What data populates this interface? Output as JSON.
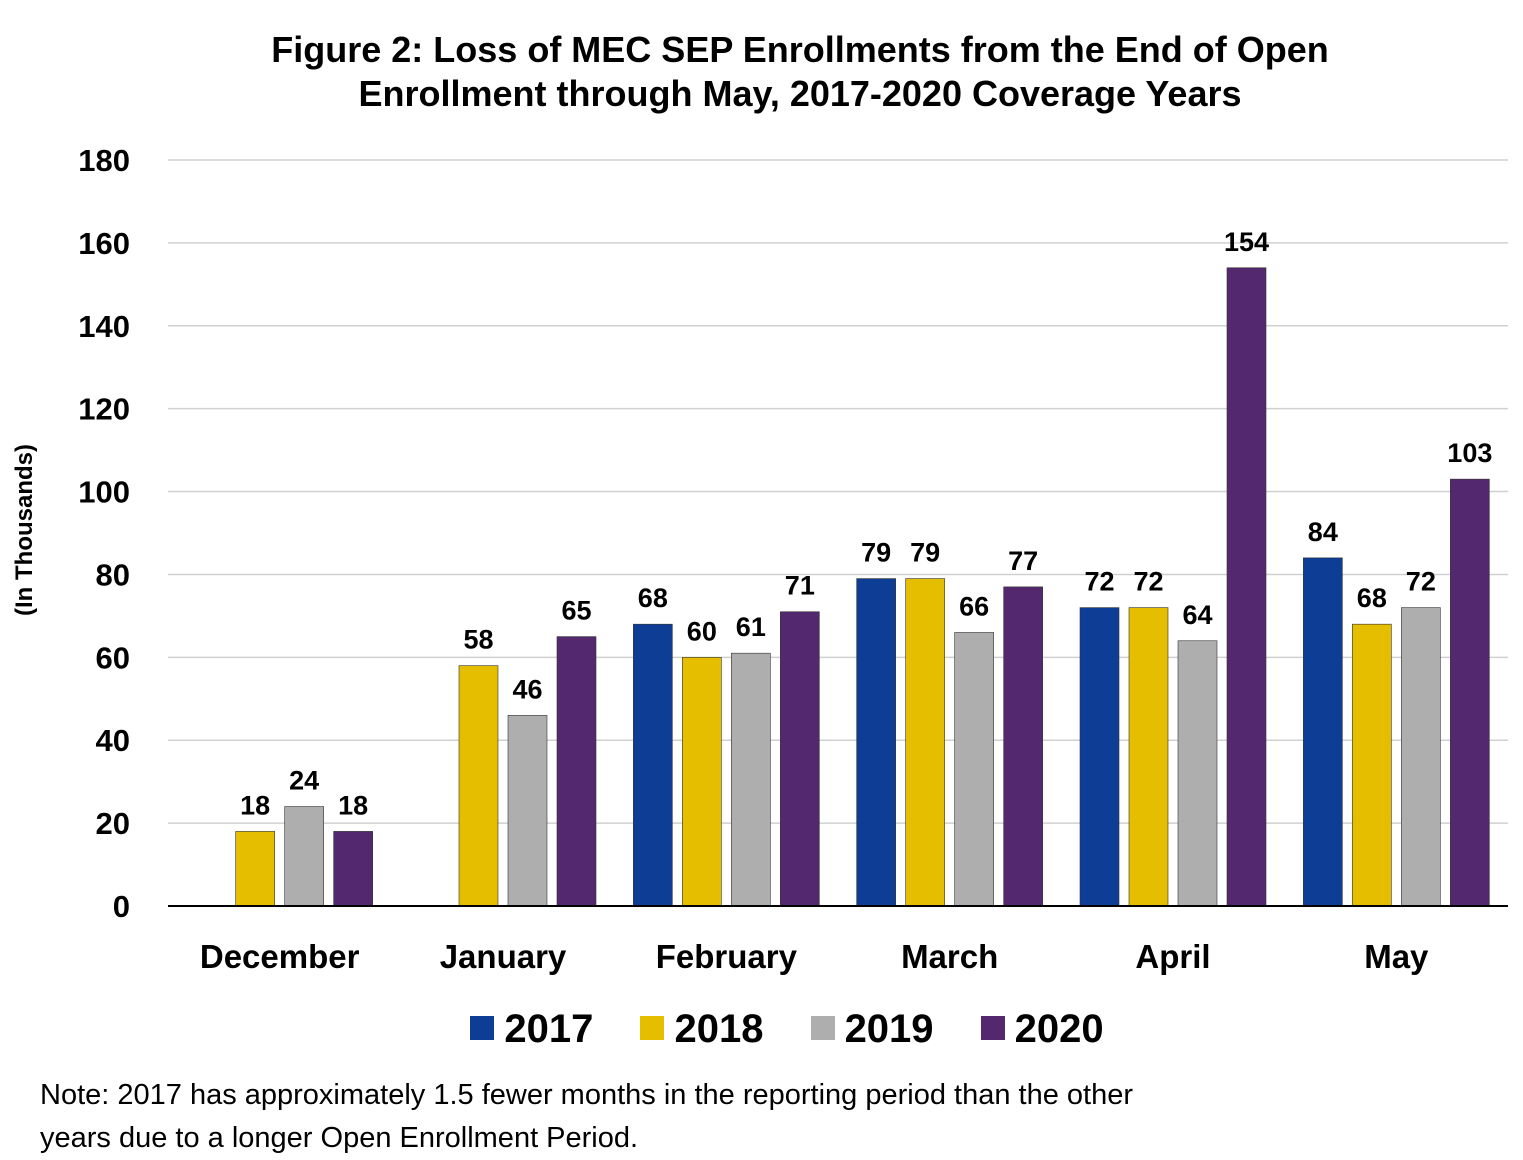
{
  "title_lines": [
    "Figure 2: Loss of MEC SEP Enrollments from the End of Open",
    "Enrollment through May, 2017-2020 Coverage Years"
  ],
  "note_lines": [
    "Note: 2017 has approximately 1.5 fewer months in the reporting period than the other",
    "years due to a longer Open Enrollment Period."
  ],
  "chart_data": {
    "type": "bar",
    "title": "Figure 2: Loss of MEC SEP Enrollments from the End of Open Enrollment through May, 2017-2020 Coverage Years",
    "ylabel": "(In Thousands)",
    "xlabel": "",
    "ylim": [
      0,
      180
    ],
    "yticks": [
      0,
      20,
      40,
      60,
      80,
      100,
      120,
      140,
      160,
      180
    ],
    "grid": true,
    "legend_position": "bottom",
    "categories": [
      "December",
      "January",
      "February",
      "March",
      "April",
      "May"
    ],
    "series": [
      {
        "name": "2017",
        "color": "#0d3d94",
        "values": [
          null,
          null,
          68,
          79,
          72,
          84
        ]
      },
      {
        "name": "2018",
        "color": "#e6be00",
        "values": [
          18,
          58,
          60,
          79,
          72,
          68
        ]
      },
      {
        "name": "2019",
        "color": "#aeaeae",
        "values": [
          24,
          46,
          61,
          66,
          64,
          72
        ]
      },
      {
        "name": "2020",
        "color": "#53286e",
        "values": [
          18,
          65,
          71,
          77,
          154,
          103
        ]
      }
    ]
  }
}
